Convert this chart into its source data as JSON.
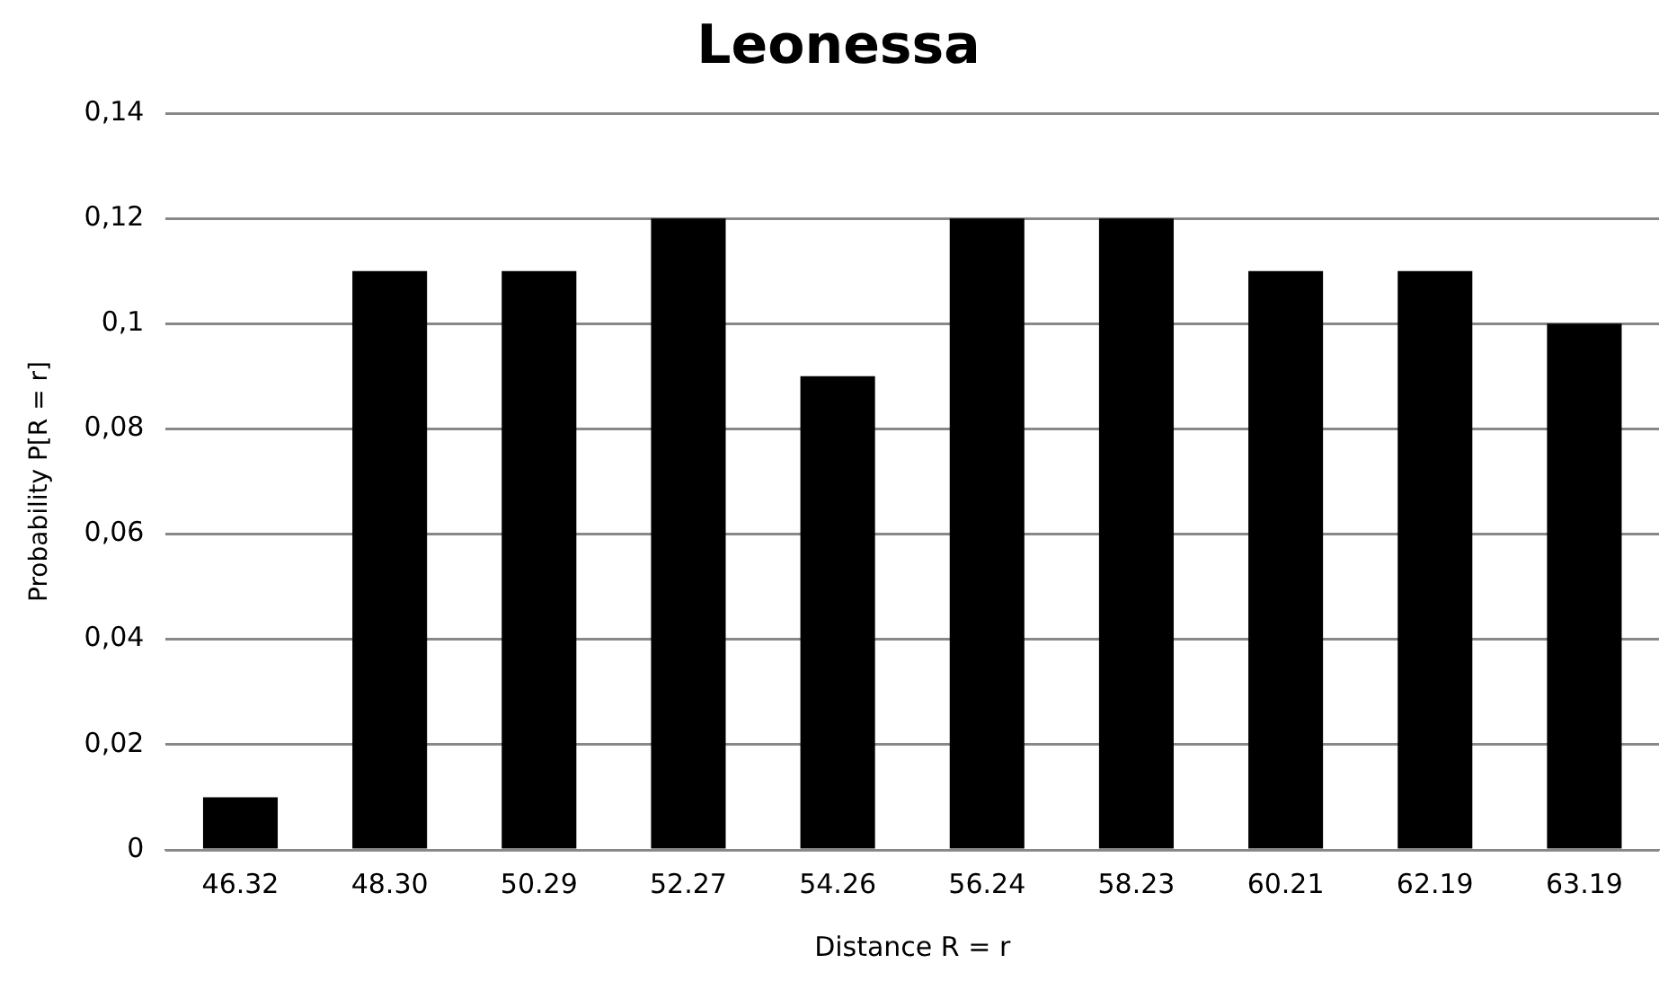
{
  "chart_data": {
    "type": "bar",
    "title": "Leonessa",
    "xlabel": "Distance R = r",
    "ylabel": "Probability P[R = r]",
    "categories": [
      "46.32",
      "48.30",
      "50.29",
      "52.27",
      "54.26",
      "56.24",
      "58.23",
      "60.21",
      "62.19",
      "63.19"
    ],
    "values": [
      0.01,
      0.11,
      0.11,
      0.12,
      0.09,
      0.12,
      0.12,
      0.11,
      0.11,
      0.1
    ],
    "color": "#000000",
    "ylim": [
      0,
      0.14
    ],
    "yticks": [
      0,
      {
        "value": 0.02,
        "label": "0,02"
      },
      {
        "value": 0.04,
        "label": "0,04"
      },
      {
        "value": 0.06,
        "label": "0,06"
      },
      {
        "value": 0.08,
        "label": "0,08"
      },
      {
        "value": 0.1,
        "label": "0,1"
      },
      {
        "value": 0.12,
        "label": "0,12"
      },
      {
        "value": 0.14,
        "label": "0,14"
      }
    ],
    "grid": "y",
    "legend": false
  }
}
